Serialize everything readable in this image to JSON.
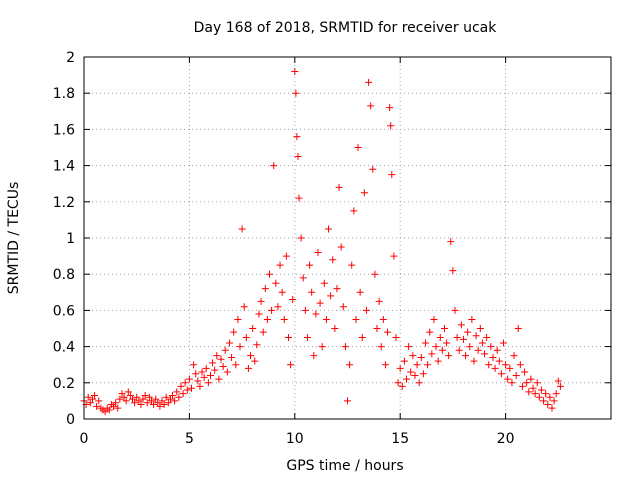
{
  "chart_data": {
    "type": "scatter",
    "title": "Day 168 of 2018, SRMTID for receiver ucak",
    "xlabel": "GPS time / hours",
    "ylabel": "SRMTID / TECUs",
    "xlim": [
      0,
      25
    ],
    "ylim": [
      0,
      2
    ],
    "xticks": [
      0,
      5,
      10,
      15,
      20
    ],
    "xtick_labels": [
      "0",
      "5",
      "10",
      "15",
      "20"
    ],
    "yticks": [
      0,
      0.2,
      0.4,
      0.6,
      0.8,
      1,
      1.2,
      1.4,
      1.6,
      1.8,
      2
    ],
    "ytick_labels": [
      "0",
      "0.2",
      "0.4",
      "0.6",
      "0.8",
      "1",
      "1.2",
      "1.4",
      "1.6",
      "1.8",
      "2"
    ],
    "grid": true,
    "marker": "+",
    "color": "#ff0000",
    "series": [
      {
        "name": "SRMTID",
        "points": [
          [
            0.0,
            0.1
          ],
          [
            0.1,
            0.08
          ],
          [
            0.2,
            0.12
          ],
          [
            0.3,
            0.09
          ],
          [
            0.4,
            0.11
          ],
          [
            0.5,
            0.13
          ],
          [
            0.6,
            0.07
          ],
          [
            0.7,
            0.1
          ],
          [
            0.8,
            0.06
          ],
          [
            0.9,
            0.05
          ],
          [
            1.0,
            0.04
          ],
          [
            1.1,
            0.06
          ],
          [
            1.2,
            0.05
          ],
          [
            1.3,
            0.08
          ],
          [
            1.4,
            0.07
          ],
          [
            1.5,
            0.09
          ],
          [
            1.6,
            0.06
          ],
          [
            1.7,
            0.11
          ],
          [
            1.8,
            0.14
          ],
          [
            1.9,
            0.12
          ],
          [
            2.0,
            0.1
          ],
          [
            2.1,
            0.15
          ],
          [
            2.2,
            0.13
          ],
          [
            2.3,
            0.11
          ],
          [
            2.4,
            0.09
          ],
          [
            2.5,
            0.12
          ],
          [
            2.6,
            0.1
          ],
          [
            2.7,
            0.08
          ],
          [
            2.8,
            0.11
          ],
          [
            2.9,
            0.13
          ],
          [
            3.0,
            0.09
          ],
          [
            3.1,
            0.12
          ],
          [
            3.2,
            0.1
          ],
          [
            3.3,
            0.08
          ],
          [
            3.4,
            0.11
          ],
          [
            3.5,
            0.09
          ],
          [
            3.6,
            0.07
          ],
          [
            3.7,
            0.1
          ],
          [
            3.8,
            0.08
          ],
          [
            3.9,
            0.12
          ],
          [
            4.0,
            0.09
          ],
          [
            4.1,
            0.11
          ],
          [
            4.2,
            0.13
          ],
          [
            4.3,
            0.1
          ],
          [
            4.4,
            0.15
          ],
          [
            4.5,
            0.12
          ],
          [
            4.6,
            0.18
          ],
          [
            4.7,
            0.14
          ],
          [
            4.8,
            0.2
          ],
          [
            4.9,
            0.16
          ],
          [
            5.0,
            0.22
          ],
          [
            5.1,
            0.17
          ],
          [
            5.2,
            0.3
          ],
          [
            5.3,
            0.25
          ],
          [
            5.4,
            0.21
          ],
          [
            5.5,
            0.18
          ],
          [
            5.6,
            0.26
          ],
          [
            5.7,
            0.23
          ],
          [
            5.8,
            0.28
          ],
          [
            5.9,
            0.2
          ],
          [
            6.0,
            0.24
          ],
          [
            6.1,
            0.31
          ],
          [
            6.2,
            0.27
          ],
          [
            6.3,
            0.35
          ],
          [
            6.4,
            0.22
          ],
          [
            6.5,
            0.33
          ],
          [
            6.6,
            0.29
          ],
          [
            6.7,
            0.38
          ],
          [
            6.8,
            0.26
          ],
          [
            6.9,
            0.42
          ],
          [
            7.0,
            0.34
          ],
          [
            7.1,
            0.48
          ],
          [
            7.2,
            0.3
          ],
          [
            7.3,
            0.55
          ],
          [
            7.4,
            0.4
          ],
          [
            7.5,
            1.05
          ],
          [
            7.6,
            0.62
          ],
          [
            7.7,
            0.45
          ],
          [
            7.8,
            0.28
          ],
          [
            7.9,
            0.35
          ],
          [
            8.0,
            0.5
          ],
          [
            8.1,
            0.32
          ],
          [
            8.2,
            0.41
          ],
          [
            8.3,
            0.58
          ],
          [
            8.4,
            0.65
          ],
          [
            8.5,
            0.48
          ],
          [
            8.6,
            0.72
          ],
          [
            8.7,
            0.55
          ],
          [
            8.8,
            0.8
          ],
          [
            8.9,
            0.6
          ],
          [
            9.0,
            1.4
          ],
          [
            9.1,
            0.75
          ],
          [
            9.2,
            0.62
          ],
          [
            9.3,
            0.85
          ],
          [
            9.4,
            0.7
          ],
          [
            9.5,
            0.55
          ],
          [
            9.6,
            0.9
          ],
          [
            9.7,
            0.45
          ],
          [
            9.8,
            0.3
          ],
          [
            9.9,
            0.66
          ],
          [
            10.0,
            1.92
          ],
          [
            10.05,
            1.8
          ],
          [
            10.1,
            1.56
          ],
          [
            10.15,
            1.45
          ],
          [
            10.2,
            1.22
          ],
          [
            10.3,
            1.0
          ],
          [
            10.4,
            0.78
          ],
          [
            10.5,
            0.6
          ],
          [
            10.6,
            0.45
          ],
          [
            10.7,
            0.85
          ],
          [
            10.8,
            0.7
          ],
          [
            10.9,
            0.35
          ],
          [
            11.0,
            0.58
          ],
          [
            11.1,
            0.92
          ],
          [
            11.2,
            0.64
          ],
          [
            11.3,
            0.4
          ],
          [
            11.4,
            0.75
          ],
          [
            11.5,
            0.55
          ],
          [
            11.6,
            1.05
          ],
          [
            11.7,
            0.68
          ],
          [
            11.8,
            0.88
          ],
          [
            11.9,
            0.5
          ],
          [
            12.0,
            0.72
          ],
          [
            12.1,
            1.28
          ],
          [
            12.2,
            0.95
          ],
          [
            12.3,
            0.62
          ],
          [
            12.4,
            0.4
          ],
          [
            12.5,
            0.1
          ],
          [
            12.6,
            0.3
          ],
          [
            12.7,
            0.85
          ],
          [
            12.8,
            1.15
          ],
          [
            12.9,
            0.55
          ],
          [
            13.0,
            1.5
          ],
          [
            13.1,
            0.7
          ],
          [
            13.2,
            0.45
          ],
          [
            13.3,
            1.25
          ],
          [
            13.4,
            0.6
          ],
          [
            13.5,
            1.86
          ],
          [
            13.6,
            1.73
          ],
          [
            13.7,
            1.38
          ],
          [
            13.8,
            0.8
          ],
          [
            13.9,
            0.5
          ],
          [
            14.0,
            0.65
          ],
          [
            14.1,
            0.4
          ],
          [
            14.2,
            0.55
          ],
          [
            14.3,
            0.3
          ],
          [
            14.4,
            0.48
          ],
          [
            14.5,
            1.72
          ],
          [
            14.55,
            1.62
          ],
          [
            14.6,
            1.35
          ],
          [
            14.7,
            0.9
          ],
          [
            14.8,
            0.45
          ],
          [
            14.9,
            0.2
          ],
          [
            15.0,
            0.28
          ],
          [
            15.1,
            0.18
          ],
          [
            15.2,
            0.32
          ],
          [
            15.3,
            0.22
          ],
          [
            15.4,
            0.4
          ],
          [
            15.5,
            0.26
          ],
          [
            15.6,
            0.35
          ],
          [
            15.7,
            0.24
          ],
          [
            15.8,
            0.3
          ],
          [
            15.9,
            0.2
          ],
          [
            16.0,
            0.34
          ],
          [
            16.1,
            0.25
          ],
          [
            16.2,
            0.42
          ],
          [
            16.3,
            0.3
          ],
          [
            16.4,
            0.48
          ],
          [
            16.5,
            0.36
          ],
          [
            16.6,
            0.55
          ],
          [
            16.7,
            0.4
          ],
          [
            16.8,
            0.32
          ],
          [
            16.9,
            0.45
          ],
          [
            17.0,
            0.38
          ],
          [
            17.1,
            0.5
          ],
          [
            17.2,
            0.42
          ],
          [
            17.3,
            0.35
          ],
          [
            17.4,
            0.98
          ],
          [
            17.5,
            0.82
          ],
          [
            17.6,
            0.6
          ],
          [
            17.7,
            0.45
          ],
          [
            17.8,
            0.38
          ],
          [
            17.9,
            0.52
          ],
          [
            18.0,
            0.44
          ],
          [
            18.1,
            0.35
          ],
          [
            18.2,
            0.48
          ],
          [
            18.3,
            0.4
          ],
          [
            18.4,
            0.55
          ],
          [
            18.5,
            0.32
          ],
          [
            18.6,
            0.46
          ],
          [
            18.7,
            0.38
          ],
          [
            18.8,
            0.5
          ],
          [
            18.9,
            0.42
          ],
          [
            19.0,
            0.36
          ],
          [
            19.1,
            0.45
          ],
          [
            19.2,
            0.3
          ],
          [
            19.3,
            0.4
          ],
          [
            19.4,
            0.34
          ],
          [
            19.5,
            0.28
          ],
          [
            19.6,
            0.38
          ],
          [
            19.7,
            0.32
          ],
          [
            19.8,
            0.25
          ],
          [
            19.9,
            0.42
          ],
          [
            20.0,
            0.3
          ],
          [
            20.1,
            0.22
          ],
          [
            20.2,
            0.28
          ],
          [
            20.3,
            0.2
          ],
          [
            20.4,
            0.35
          ],
          [
            20.5,
            0.24
          ],
          [
            20.6,
            0.5
          ],
          [
            20.7,
            0.3
          ],
          [
            20.8,
            0.18
          ],
          [
            20.9,
            0.26
          ],
          [
            21.0,
            0.2
          ],
          [
            21.1,
            0.15
          ],
          [
            21.2,
            0.22
          ],
          [
            21.3,
            0.17
          ],
          [
            21.4,
            0.14
          ],
          [
            21.5,
            0.2
          ],
          [
            21.6,
            0.12
          ],
          [
            21.7,
            0.16
          ],
          [
            21.8,
            0.1
          ],
          [
            21.9,
            0.14
          ],
          [
            22.0,
            0.08
          ],
          [
            22.1,
            0.12
          ],
          [
            22.2,
            0.06
          ],
          [
            22.3,
            0.1
          ],
          [
            22.4,
            0.14
          ],
          [
            22.5,
            0.21
          ],
          [
            22.6,
            0.18
          ]
        ]
      }
    ]
  }
}
